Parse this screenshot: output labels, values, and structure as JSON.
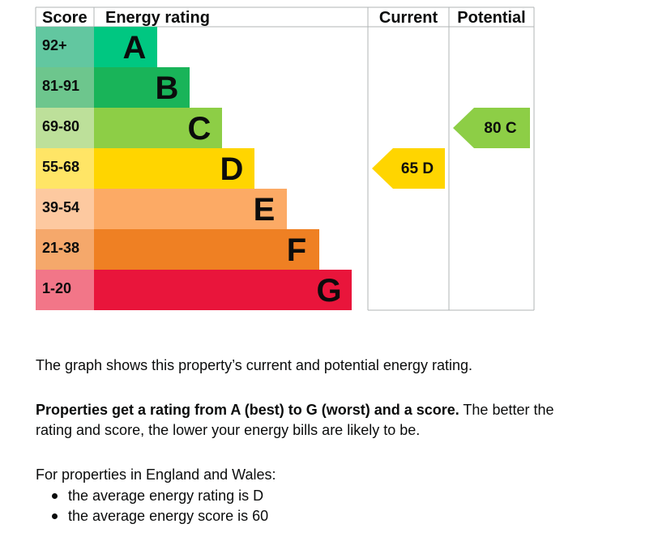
{
  "chart_data": {
    "type": "bar",
    "headers": {
      "score": "Score",
      "rating": "Energy rating",
      "current": "Current",
      "potential": "Potential"
    },
    "bands": [
      {
        "letter": "A",
        "range": "92+",
        "color": "#00c781",
        "score_color": "#62c7a0"
      },
      {
        "letter": "B",
        "range": "81-91",
        "color": "#19b459",
        "score_color": "#6dc68d"
      },
      {
        "letter": "C",
        "range": "69-80",
        "color": "#8dce46",
        "score_color": "#bde09a"
      },
      {
        "letter": "D",
        "range": "55-68",
        "color": "#ffd500",
        "score_color": "#ffe566"
      },
      {
        "letter": "E",
        "range": "39-54",
        "color": "#fcaa65",
        "score_color": "#fdc9a0"
      },
      {
        "letter": "F",
        "range": "21-38",
        "color": "#ef8023",
        "score_color": "#f5a86b"
      },
      {
        "letter": "G",
        "range": "1-20",
        "color": "#e9153b",
        "score_color": "#f27688"
      }
    ],
    "current": {
      "score": 65,
      "letter": "D",
      "label": "65 D",
      "color": "#ffd500"
    },
    "potential": {
      "score": 80,
      "letter": "C",
      "label": "80 C",
      "color": "#8dce46"
    }
  },
  "text": {
    "graph_description": "The graph shows this property’s current and potential energy rating.",
    "ratings_bold": "Properties get a rating from A (best) to G (worst) and a score.",
    "ratings_rest": " The better the rating and score, the lower your energy bills are likely to be.",
    "england_wales": "For properties in England and Wales:",
    "averages": [
      "the average energy rating is D",
      "the average energy score is 60"
    ]
  },
  "colors": {
    "grid": "#b1b4b6",
    "text": "#0b0c0c"
  }
}
